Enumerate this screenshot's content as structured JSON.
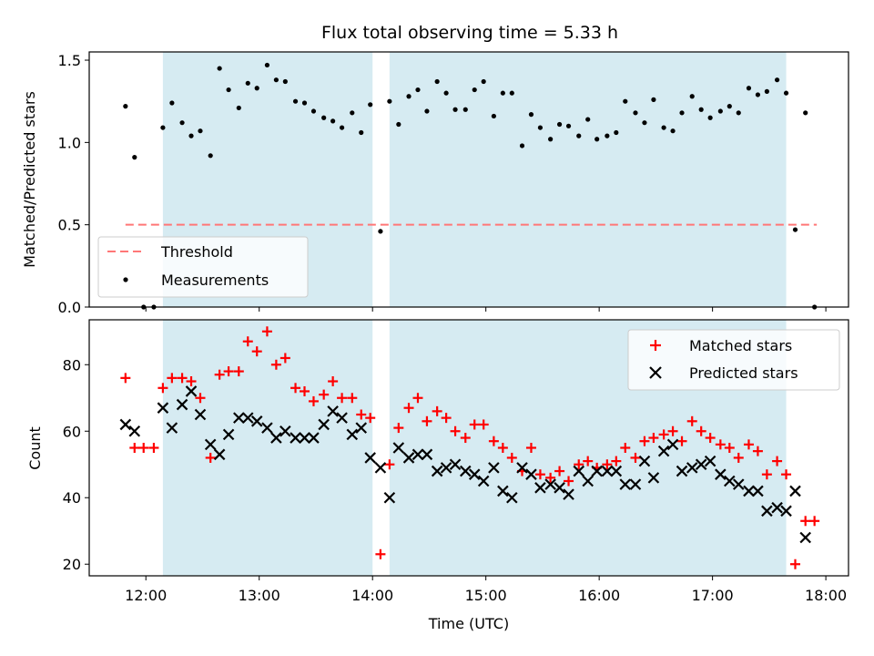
{
  "chart_data": [
    {
      "type": "scatter",
      "title": "Flux total observing time = 5.33 h",
      "xlabel": "",
      "ylabel": "Matched/Predicted stars",
      "x_unit": "hours (UTC)",
      "xlim": [
        11.5,
        18.2
      ],
      "ylim": [
        0.0,
        1.55
      ],
      "yticks": [
        0.0,
        0.5,
        1.0,
        1.5
      ],
      "ytick_labels": [
        "0.0",
        "0.5",
        "1.0",
        "1.5"
      ],
      "shaded_spans": [
        [
          12.15,
          14.0
        ],
        [
          14.15,
          17.65
        ]
      ],
      "shade_color": "#add8e6",
      "threshold": {
        "name": "Threshold",
        "y": 0.5,
        "x_range": [
          11.82,
          17.92
        ],
        "color": "#ff7777"
      },
      "legend_placement": "lower-left",
      "series": [
        {
          "name": "Measurements",
          "marker": "dot",
          "color": "#000000",
          "x": [
            11.82,
            11.9,
            11.98,
            12.07,
            12.15,
            12.23,
            12.32,
            12.4,
            12.48,
            12.57,
            12.65,
            12.73,
            12.82,
            12.9,
            12.98,
            13.07,
            13.15,
            13.23,
            13.32,
            13.4,
            13.48,
            13.57,
            13.65,
            13.73,
            13.82,
            13.9,
            13.98,
            14.07,
            14.15,
            14.23,
            14.32,
            14.4,
            14.48,
            14.57,
            14.65,
            14.73,
            14.82,
            14.9,
            14.98,
            15.07,
            15.15,
            15.23,
            15.32,
            15.4,
            15.48,
            15.57,
            15.65,
            15.73,
            15.82,
            15.9,
            15.98,
            16.07,
            16.15,
            16.23,
            16.32,
            16.4,
            16.48,
            16.57,
            16.65,
            16.73,
            16.82,
            16.9,
            16.98,
            17.07,
            17.15,
            17.23,
            17.32,
            17.4,
            17.48,
            17.57,
            17.65,
            17.73,
            17.82,
            17.9
          ],
          "y": [
            1.22,
            0.91,
            0.0,
            0.0,
            1.09,
            1.24,
            1.12,
            1.04,
            1.07,
            0.92,
            1.45,
            1.32,
            1.21,
            1.36,
            1.33,
            1.47,
            1.38,
            1.37,
            1.25,
            1.24,
            1.19,
            1.15,
            1.13,
            1.09,
            1.18,
            1.06,
            1.23,
            0.46,
            1.25,
            1.11,
            1.28,
            1.32,
            1.19,
            1.37,
            1.3,
            1.2,
            1.2,
            1.32,
            1.37,
            1.16,
            1.3,
            1.3,
            0.98,
            1.17,
            1.09,
            1.02,
            1.11,
            1.1,
            1.04,
            1.14,
            1.02,
            1.04,
            1.06,
            1.25,
            1.18,
            1.12,
            1.26,
            1.09,
            1.07,
            1.18,
            1.28,
            1.2,
            1.15,
            1.19,
            1.22,
            1.18,
            1.33,
            1.29,
            1.31,
            1.38,
            1.3,
            0.47,
            1.18,
            0.0
          ]
        }
      ]
    },
    {
      "type": "scatter",
      "title": "",
      "xlabel": "Time (UTC)",
      "ylabel": "Count",
      "x_unit": "hours (UTC)",
      "xlim": [
        11.5,
        18.2
      ],
      "ylim": [
        16.5,
        93.5
      ],
      "xticks": [
        12,
        13,
        14,
        15,
        16,
        17,
        18
      ],
      "xtick_labels": [
        "12:00",
        "13:00",
        "14:00",
        "15:00",
        "16:00",
        "17:00",
        "18:00"
      ],
      "yticks": [
        20,
        40,
        60,
        80
      ],
      "ytick_labels": [
        "20",
        "40",
        "60",
        "80"
      ],
      "shaded_spans": [
        [
          12.15,
          14.0
        ],
        [
          14.15,
          17.65
        ]
      ],
      "shade_color": "#add8e6",
      "legend_placement": "upper-right",
      "series": [
        {
          "name": "Matched stars",
          "marker": "plus",
          "color": "#ff0000",
          "x": [
            11.82,
            11.9,
            11.98,
            12.07,
            12.15,
            12.23,
            12.32,
            12.4,
            12.48,
            12.57,
            12.65,
            12.73,
            12.82,
            12.9,
            12.98,
            13.07,
            13.15,
            13.23,
            13.32,
            13.4,
            13.48,
            13.57,
            13.65,
            13.73,
            13.82,
            13.9,
            13.98,
            14.07,
            14.15,
            14.23,
            14.32,
            14.4,
            14.48,
            14.57,
            14.65,
            14.73,
            14.82,
            14.9,
            14.98,
            15.07,
            15.15,
            15.23,
            15.32,
            15.4,
            15.48,
            15.57,
            15.65,
            15.73,
            15.82,
            15.9,
            15.98,
            16.07,
            16.15,
            16.23,
            16.32,
            16.4,
            16.48,
            16.57,
            16.65,
            16.73,
            16.82,
            16.9,
            16.98,
            17.07,
            17.15,
            17.23,
            17.32,
            17.4,
            17.48,
            17.57,
            17.65,
            17.73,
            17.82,
            17.9
          ],
          "y": [
            76,
            55,
            55,
            55,
            73,
            76,
            76,
            75,
            70,
            52,
            77,
            78,
            78,
            87,
            84,
            90,
            80,
            82,
            73,
            72,
            69,
            71,
            75,
            70,
            70,
            65,
            64,
            23,
            50,
            61,
            67,
            70,
            63,
            66,
            64,
            60,
            58,
            62,
            62,
            57,
            55,
            52,
            48,
            55,
            47,
            46,
            48,
            45,
            50,
            51,
            49,
            50,
            51,
            55,
            52,
            57,
            58,
            59,
            60,
            57,
            63,
            60,
            58,
            56,
            55,
            52,
            56,
            54,
            47,
            51,
            47,
            20,
            33,
            33
          ]
        },
        {
          "name": "Predicted stars",
          "marker": "x",
          "color": "#000000",
          "x": [
            11.82,
            11.9,
            11.98,
            12.07,
            12.15,
            12.23,
            12.32,
            12.4,
            12.48,
            12.57,
            12.65,
            12.73,
            12.82,
            12.9,
            12.98,
            13.07,
            13.15,
            13.23,
            13.32,
            13.4,
            13.48,
            13.57,
            13.65,
            13.73,
            13.82,
            13.9,
            13.98,
            14.07,
            14.15,
            14.23,
            14.32,
            14.4,
            14.48,
            14.57,
            14.65,
            14.73,
            14.82,
            14.9,
            14.98,
            15.07,
            15.15,
            15.23,
            15.32,
            15.4,
            15.48,
            15.57,
            15.65,
            15.73,
            15.82,
            15.9,
            15.98,
            16.07,
            16.15,
            16.23,
            16.32,
            16.4,
            16.48,
            16.57,
            16.65,
            16.73,
            16.82,
            16.9,
            16.98,
            17.07,
            17.15,
            17.23,
            17.32,
            17.4,
            17.48,
            17.57,
            17.65,
            17.73,
            17.82,
            17.9
          ],
          "y": [
            62,
            60,
            null,
            null,
            67,
            61,
            68,
            72,
            65,
            56,
            53,
            59,
            64,
            64,
            63,
            61,
            58,
            60,
            58,
            58,
            58,
            62,
            66,
            64,
            59,
            61,
            52,
            49,
            40,
            55,
            52,
            53,
            53,
            48,
            49,
            50,
            48,
            47,
            45,
            49,
            42,
            40,
            49,
            47,
            43,
            44,
            43,
            41,
            48,
            45,
            48,
            48,
            48,
            44,
            44,
            51,
            46,
            54,
            56,
            48,
            49,
            50,
            51,
            47,
            45,
            44,
            42,
            42,
            36,
            37,
            36,
            42,
            28,
            null
          ]
        }
      ]
    }
  ]
}
